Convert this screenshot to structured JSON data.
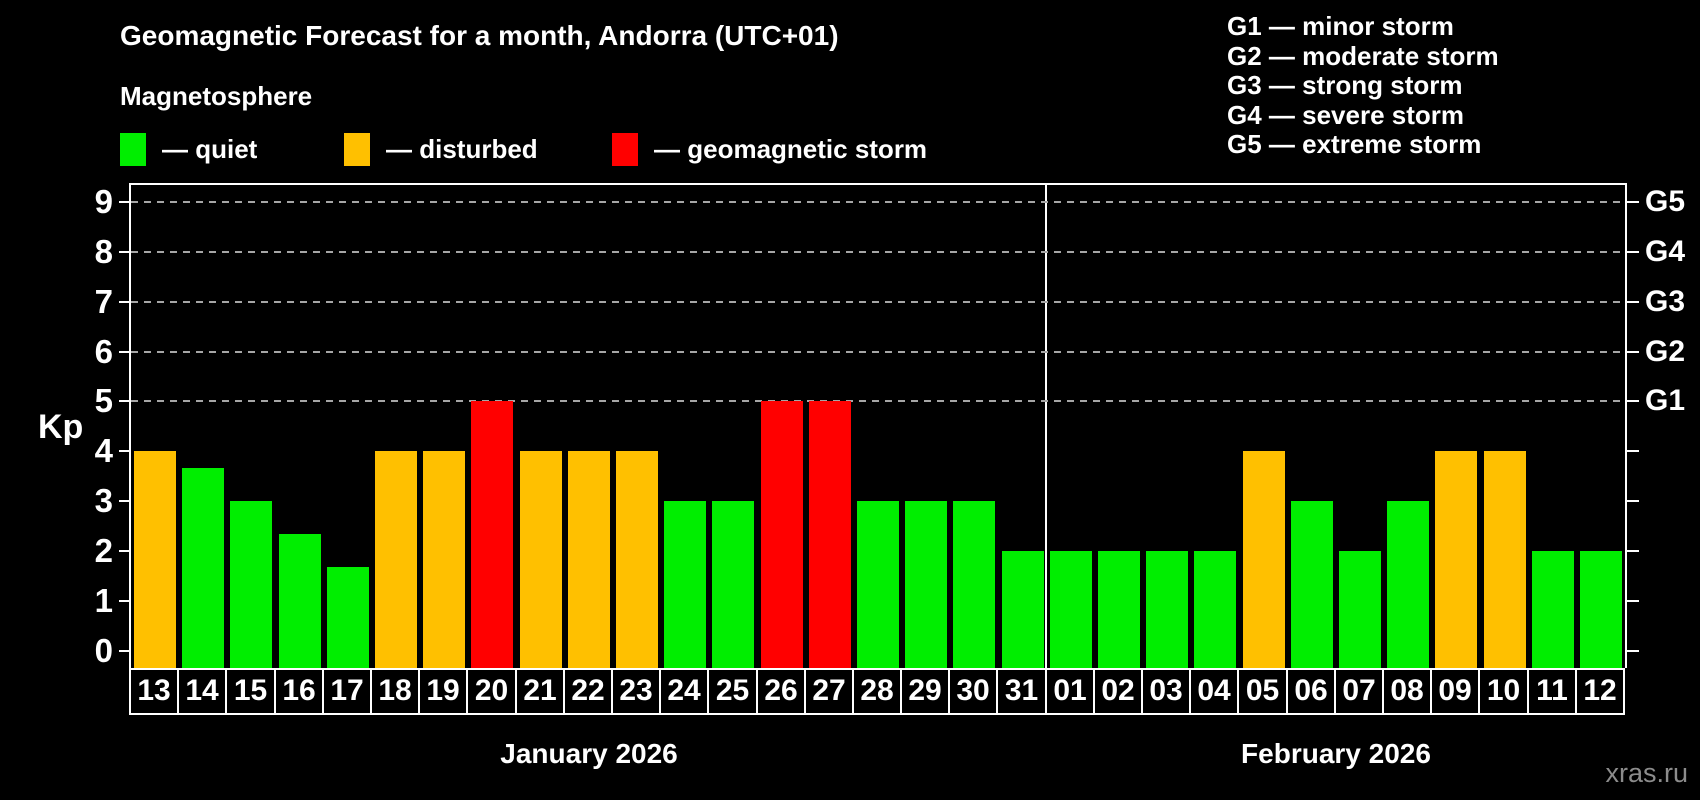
{
  "title": "Geomagnetic Forecast for a month, Andorra (UTC+01)",
  "subtitle": "Magnetosphere",
  "legend": {
    "items": [
      {
        "key": "quiet",
        "label": "— quiet"
      },
      {
        "key": "disturbed",
        "label": "— disturbed"
      },
      {
        "key": "storm",
        "label": "— geomagnetic storm"
      }
    ]
  },
  "g_legend": [
    "G1 — minor storm",
    "G2 — moderate storm",
    "G3 — strong storm",
    "G4 — severe storm",
    "G5 — extreme storm"
  ],
  "watermark": "xras.ru",
  "colors": {
    "quiet": "#00EE00",
    "disturbed": "#FFC000",
    "storm": "#FF0000",
    "axis": "#FFFFFF",
    "grid": "#A6A6A6",
    "text": "#FFFFFF",
    "watermark": "#8C8C8C",
    "background": "#000000"
  },
  "chart_data": {
    "type": "bar",
    "title": "Geomagnetic Forecast for a month, Andorra (UTC+01)",
    "ylabel": "Kp",
    "ylim": [
      0,
      9
    ],
    "yticks": [
      0,
      1,
      2,
      3,
      4,
      5,
      6,
      7,
      8,
      9
    ],
    "gridlines_at": [
      5,
      6,
      7,
      8,
      9
    ],
    "grid": "dashed",
    "legend_position": "top-left",
    "right_axis": [
      {
        "kp": 5,
        "label": "G1"
      },
      {
        "kp": 6,
        "label": "G2"
      },
      {
        "kp": 7,
        "label": "G3"
      },
      {
        "kp": 8,
        "label": "G4"
      },
      {
        "kp": 9,
        "label": "G5"
      }
    ],
    "months": [
      {
        "label": "January 2026",
        "days": [
          {
            "day": "13",
            "kp": 4.0,
            "status": "disturbed"
          },
          {
            "day": "14",
            "kp": 3.67,
            "status": "quiet"
          },
          {
            "day": "15",
            "kp": 3.0,
            "status": "quiet"
          },
          {
            "day": "16",
            "kp": 2.33,
            "status": "quiet"
          },
          {
            "day": "17",
            "kp": 1.67,
            "status": "quiet"
          },
          {
            "day": "18",
            "kp": 4.0,
            "status": "disturbed"
          },
          {
            "day": "19",
            "kp": 4.0,
            "status": "disturbed"
          },
          {
            "day": "20",
            "kp": 5.0,
            "status": "storm"
          },
          {
            "day": "21",
            "kp": 4.0,
            "status": "disturbed"
          },
          {
            "day": "22",
            "kp": 4.0,
            "status": "disturbed"
          },
          {
            "day": "23",
            "kp": 4.0,
            "status": "disturbed"
          },
          {
            "day": "24",
            "kp": 3.0,
            "status": "quiet"
          },
          {
            "day": "25",
            "kp": 3.0,
            "status": "quiet"
          },
          {
            "day": "26",
            "kp": 5.0,
            "status": "storm"
          },
          {
            "day": "27",
            "kp": 5.0,
            "status": "storm"
          },
          {
            "day": "28",
            "kp": 3.0,
            "status": "quiet"
          },
          {
            "day": "29",
            "kp": 3.0,
            "status": "quiet"
          },
          {
            "day": "30",
            "kp": 3.0,
            "status": "quiet"
          },
          {
            "day": "31",
            "kp": 2.0,
            "status": "quiet"
          }
        ]
      },
      {
        "label": "February 2026",
        "days": [
          {
            "day": "01",
            "kp": 2.0,
            "status": "quiet"
          },
          {
            "day": "02",
            "kp": 2.0,
            "status": "quiet"
          },
          {
            "day": "03",
            "kp": 2.0,
            "status": "quiet"
          },
          {
            "day": "04",
            "kp": 2.0,
            "status": "quiet"
          },
          {
            "day": "05",
            "kp": 4.0,
            "status": "disturbed"
          },
          {
            "day": "06",
            "kp": 3.0,
            "status": "quiet"
          },
          {
            "day": "07",
            "kp": 2.0,
            "status": "quiet"
          },
          {
            "day": "08",
            "kp": 3.0,
            "status": "quiet"
          },
          {
            "day": "09",
            "kp": 4.0,
            "status": "disturbed"
          },
          {
            "day": "10",
            "kp": 4.0,
            "status": "disturbed"
          },
          {
            "day": "11",
            "kp": 2.0,
            "status": "quiet"
          },
          {
            "day": "12",
            "kp": 2.0,
            "status": "quiet"
          }
        ]
      }
    ]
  }
}
